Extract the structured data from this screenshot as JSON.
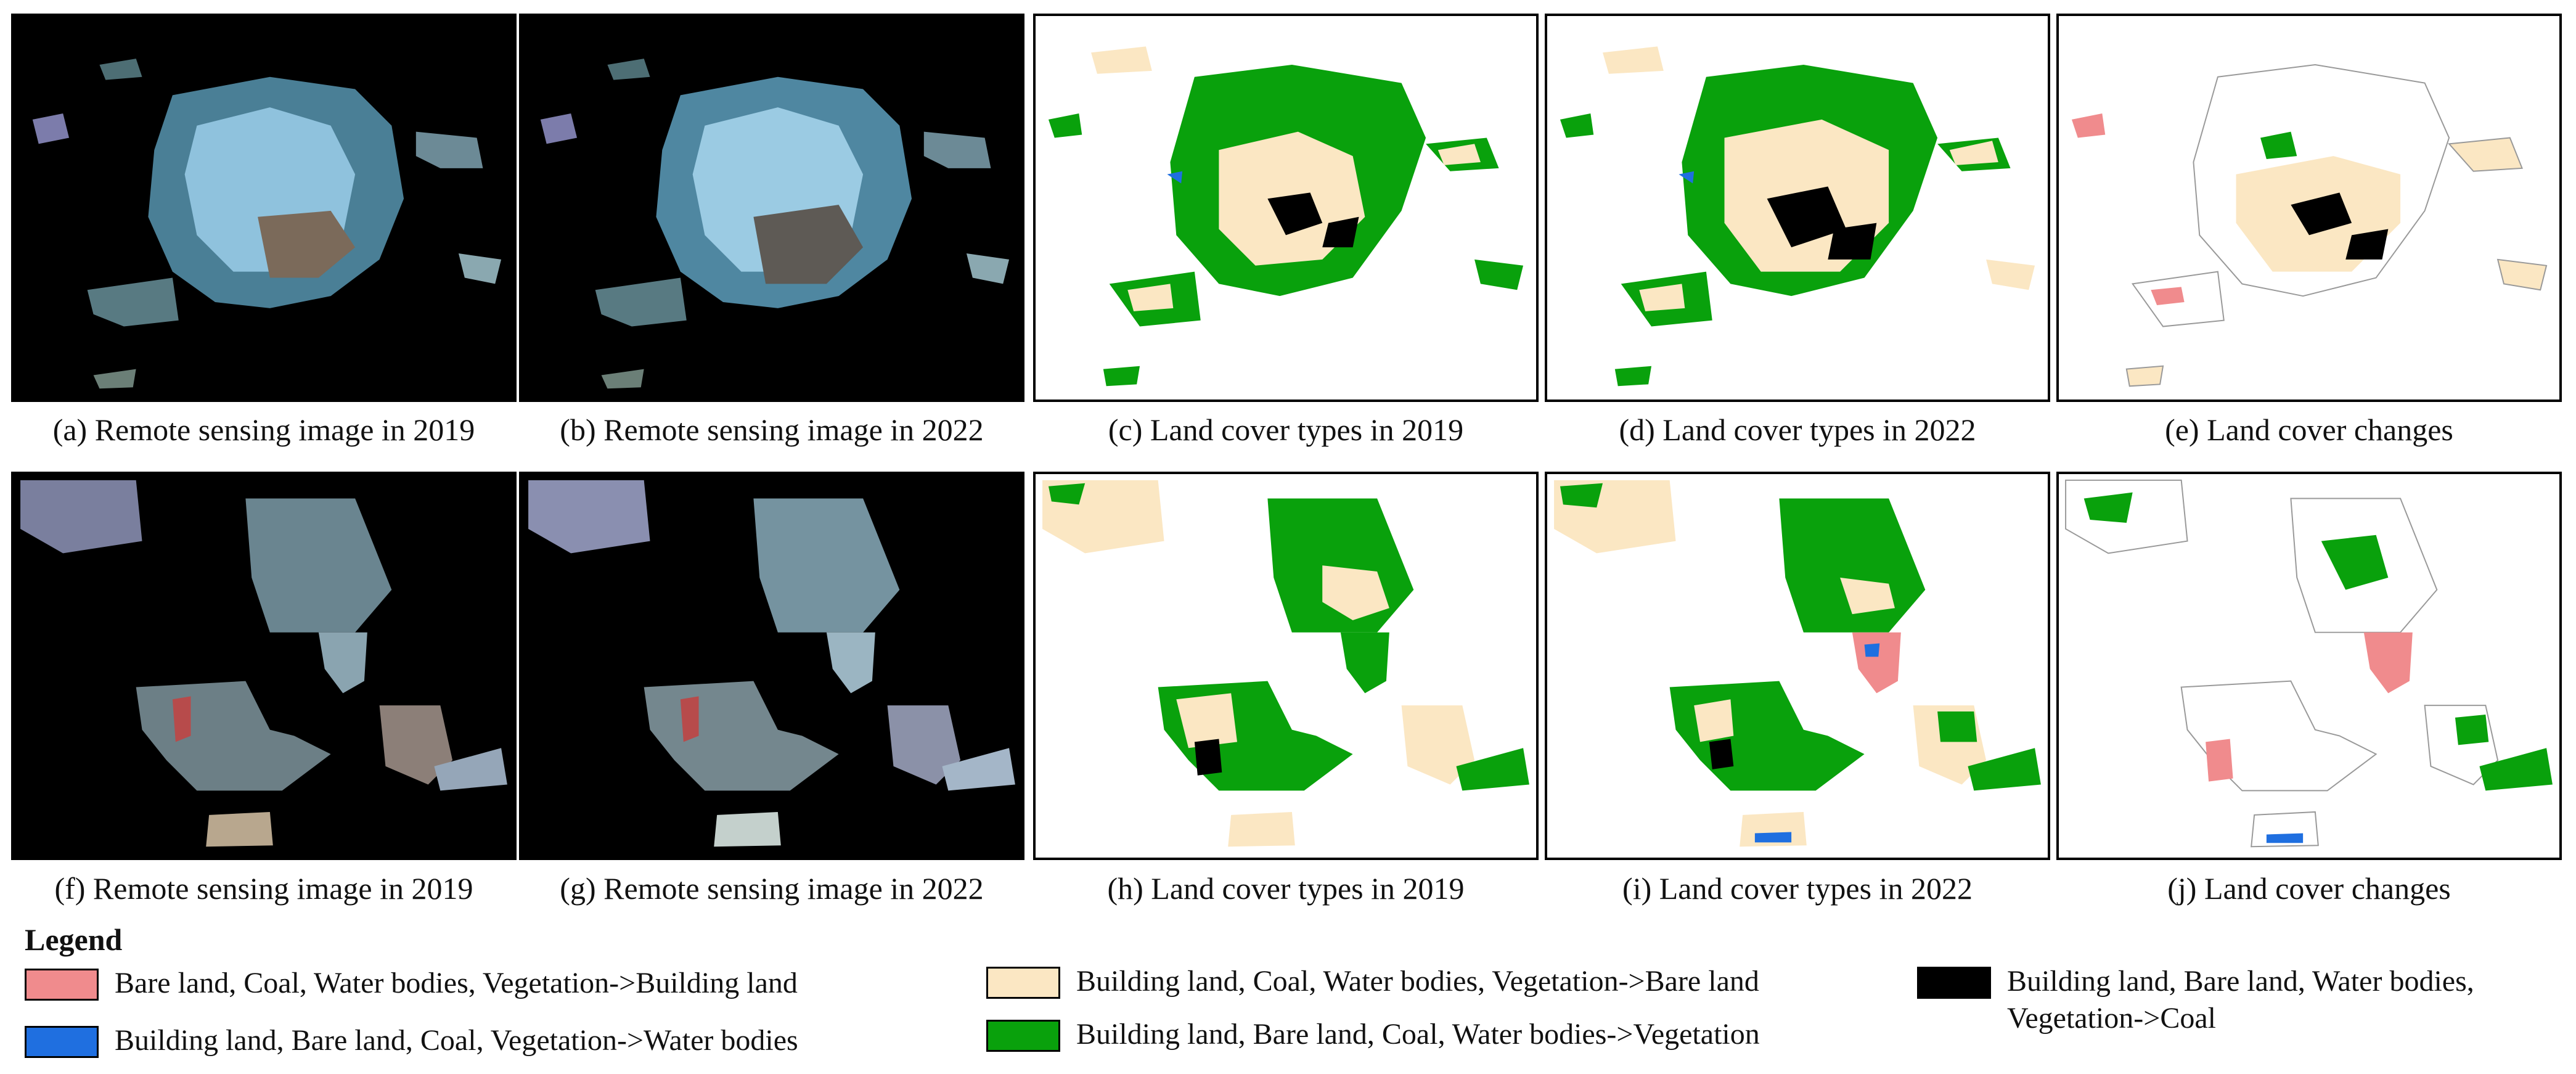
{
  "colors": {
    "building_land": "#f08b8d",
    "water_bodies": "#1f6fe0",
    "bare_land": "#fbe7c3",
    "vegetation": "#09a10c",
    "coal": "#000000"
  },
  "row1": {
    "a": "(a) Remote sensing image in 2019",
    "b": "(b) Remote sensing image in 2022",
    "c": "(c) Land cover types in 2019",
    "d": "(d) Land cover types in 2022",
    "e": "(e) Land cover changes"
  },
  "row2": {
    "f": "(f) Remote sensing image in 2019",
    "g": "(g) Remote sensing image in 2022",
    "h": "(h) Land cover types in 2019",
    "i": "(i) Land cover types in 2022",
    "j": "(j) Land cover changes"
  },
  "legend": {
    "title": "Legend",
    "items": [
      "Bare land, Coal, Water bodies, Vegetation->Building land",
      "Building land, Bare land, Coal, Vegetation->Water bodies",
      "Building land, Coal, Water bodies, Vegetation->Bare land",
      "Building land, Bare land, Coal, Water bodies->Vegetation",
      "Building land, Bare land, Water bodies, Vegetation->Coal"
    ]
  }
}
